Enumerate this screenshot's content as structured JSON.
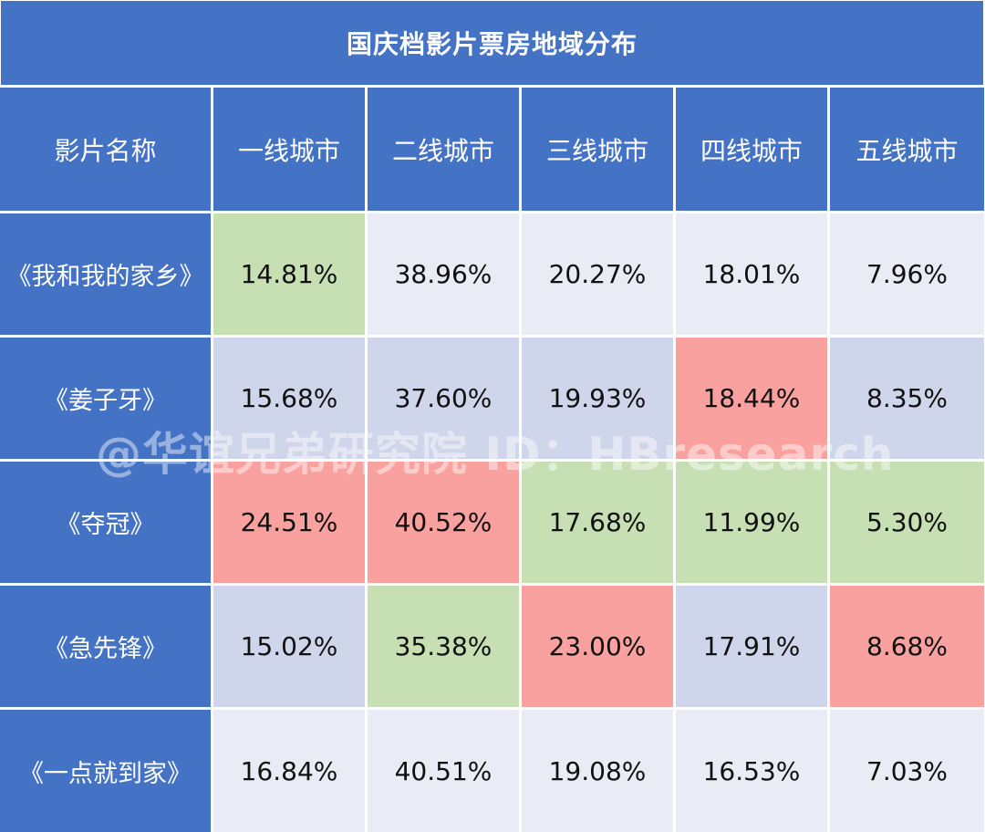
{
  "chart_data": {
    "type": "table",
    "title": "国庆档影片票房地域分布",
    "columns": [
      "影片名称",
      "一线城市",
      "二线城市",
      "三线城市",
      "四线城市",
      "五线城市"
    ],
    "rows": [
      {
        "film": "《我和我的家乡》",
        "values": [
          "14.81%",
          "38.96%",
          "20.27%",
          "18.01%",
          "7.96%"
        ]
      },
      {
        "film": "《姜子牙》",
        "values": [
          "15.68%",
          "37.60%",
          "19.93%",
          "18.44%",
          "8.35%"
        ]
      },
      {
        "film": "《夺冠》",
        "values": [
          "24.51%",
          "40.52%",
          "17.68%",
          "11.99%",
          "5.30%"
        ]
      },
      {
        "film": "《急先锋》",
        "values": [
          "15.02%",
          "35.38%",
          "23.00%",
          "17.91%",
          "8.68%"
        ]
      },
      {
        "film": "《一点就到家》",
        "values": [
          "16.84%",
          "40.51%",
          "19.08%",
          "16.53%",
          "7.03%"
        ]
      }
    ]
  },
  "watermark": "@华谊兄弟研究院 ID：HBresearch",
  "colors": {
    "header_blue": "#4472c4",
    "cell_light": "#e9ebf5",
    "cell_mid": "#cfd5ea",
    "highlight_green": "#c6e0b4",
    "highlight_red": "#f9a19f"
  }
}
